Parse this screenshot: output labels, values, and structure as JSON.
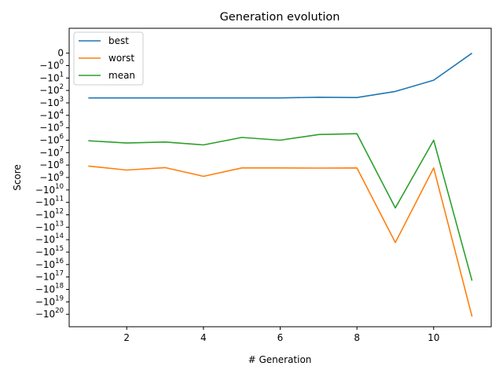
{
  "chart_data": {
    "type": "line",
    "title": "Generation evolution",
    "xlabel": "# Generation",
    "ylabel": "Score",
    "yscale": "symlog (negative values)",
    "xlim": [
      0.5,
      11.5
    ],
    "ylim": [
      -1e+21,
      10
    ],
    "xticks": [
      2,
      4,
      6,
      8,
      10
    ],
    "yticks": [
      {
        "value": 0,
        "label": "0"
      },
      {
        "value": -1,
        "label": "−10",
        "exp": "0"
      },
      {
        "value": -10,
        "label": "−10",
        "exp": "1"
      },
      {
        "value": -100,
        "label": "−10",
        "exp": "2"
      },
      {
        "value": -1000,
        "label": "−10",
        "exp": "3"
      },
      {
        "value": -10000,
        "label": "−10",
        "exp": "4"
      },
      {
        "value": -100000,
        "label": "−10",
        "exp": "5"
      },
      {
        "value": -1000000,
        "label": "−10",
        "exp": "6"
      },
      {
        "value": -10000000,
        "label": "−10",
        "exp": "7"
      },
      {
        "value": -100000000,
        "label": "−10",
        "exp": "8"
      },
      {
        "value": -1000000000,
        "label": "−10",
        "exp": "9"
      },
      {
        "value": -10000000000,
        "label": "−10",
        "exp": "10"
      },
      {
        "value": -100000000000,
        "label": "−10",
        "exp": "11"
      },
      {
        "value": -1000000000000,
        "label": "−10",
        "exp": "12"
      },
      {
        "value": -10000000000000,
        "label": "−10",
        "exp": "13"
      },
      {
        "value": -100000000000000,
        "label": "−10",
        "exp": "14"
      },
      {
        "value": -1000000000000000,
        "label": "−10",
        "exp": "15"
      },
      {
        "value": -10000000000000000,
        "label": "−10",
        "exp": "16"
      },
      {
        "value": -100000000000000000,
        "label": "−10",
        "exp": "17"
      },
      {
        "value": -1000000000000000000,
        "label": "−10",
        "exp": "18"
      },
      {
        "value": -10000000000000000000,
        "label": "−10",
        "exp": "19"
      },
      {
        "value": -100000000000000000000,
        "label": "−10",
        "exp": "20"
      }
    ],
    "x": [
      1,
      2,
      3,
      4,
      5,
      6,
      7,
      8,
      9,
      10,
      11
    ],
    "series": [
      {
        "name": "best",
        "color": "#1f77b4",
        "values": [
          -400,
          -400,
          -400,
          -400,
          -400,
          -400,
          -350,
          -370,
          -120,
          -15,
          0
        ]
      },
      {
        "name": "worst",
        "color": "#ff7f0e",
        "values": [
          -120000000.0,
          -250000000.0,
          -160000000.0,
          -800000000.0,
          -170000000.0,
          -170000000.0,
          -175000000.0,
          -170000000.0,
          -170000000000000.0,
          -170000000.0,
          -1.5e+20
        ]
      },
      {
        "name": "mean",
        "color": "#2ca02c",
        "values": [
          -1100000.0,
          -1700000.0,
          -1400000.0,
          -2400000.0,
          -600000.0,
          -1000000.0,
          -350000.0,
          -300000.0,
          -280000000000.0,
          -1000000.0,
          -2e+17
        ]
      }
    ],
    "legend": "top-left",
    "grid": false
  }
}
